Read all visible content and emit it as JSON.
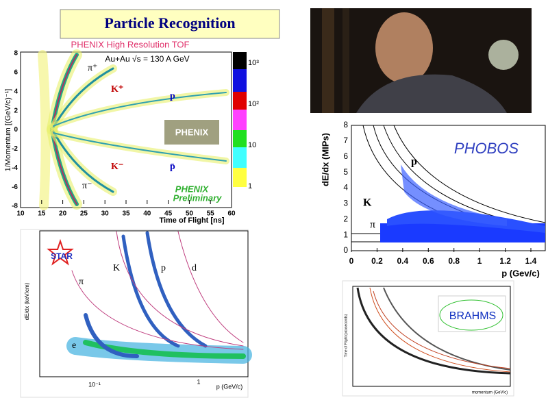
{
  "header": {
    "title": "Particle Recognition"
  },
  "phenix": {
    "title": "PHENIX High Resolution TOF",
    "subtitle": "Au+Au √s = 130 A GeV",
    "y_label": "1/Momentum [(GeV/c)⁻¹]",
    "x_label": "Time of Flight [ns]",
    "x_ticks": [
      "10",
      "15",
      "20",
      "25",
      "30",
      "35",
      "40",
      "45",
      "50",
      "55",
      "60"
    ],
    "y_ticks": [
      "8",
      "6",
      "4",
      "2",
      "0",
      "-2",
      "-4",
      "-6",
      "-8"
    ],
    "colorbar": [
      "10³",
      "10²",
      "10",
      "1"
    ],
    "labels": [
      "π⁺",
      "K⁺",
      "p",
      "K⁻",
      "p̄",
      "π⁻"
    ],
    "logo": "PHENIX",
    "note": [
      "PHENIX",
      "Preliminary"
    ]
  },
  "phobos": {
    "y_label": "dE/dx (MIPs)",
    "x_label": "p (Gev/c)",
    "logo": "PHOBOS",
    "y_ticks": [
      "0",
      "1",
      "2",
      "3",
      "4",
      "5",
      "6",
      "7",
      "8"
    ],
    "x_ticks": [
      "0",
      "0.2",
      "0.4",
      "0.6",
      "0.8",
      "1",
      "1.2",
      "1.4"
    ],
    "labels": [
      "p",
      "K",
      "π"
    ]
  },
  "star": {
    "logo": "STAR",
    "y_label": "dE/dx (keV/cm)",
    "x_label": "p (GeV/c)",
    "x_ticks": [
      "10⁻¹",
      "1"
    ],
    "labels": [
      "π",
      "K",
      "p",
      "d",
      "e"
    ]
  },
  "brahms": {
    "logo": "BRAHMS",
    "x_label": "momentum (GeV/c)",
    "y_label": "Time of Flight (picoseconds)"
  }
}
